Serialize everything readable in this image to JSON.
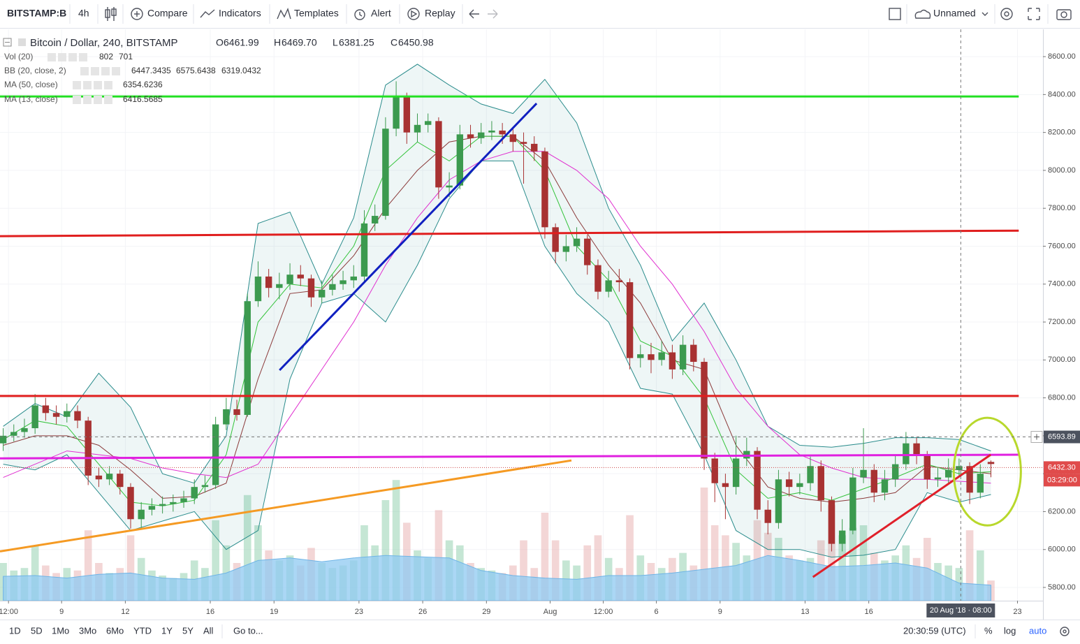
{
  "toolbar": {
    "symbol": "BITSTAMP:B",
    "interval": "4h",
    "compare": "Compare",
    "indicators": "Indicators",
    "templates": "Templates",
    "alert": "Alert",
    "replay": "Replay",
    "layout": "Unnamed"
  },
  "bottom": {
    "ranges": [
      "1D",
      "5D",
      "1Mo",
      "3Mo",
      "6Mo",
      "YTD",
      "1Y",
      "5Y",
      "All"
    ],
    "goto": "Go to...",
    "clock": "20:30:59 (UTC)",
    "percent": "%",
    "log": "log",
    "auto": "auto"
  },
  "chart_data": {
    "type": "candlestick",
    "legend": {
      "symbol": "Bitcoin / Dollar, 240, BITSTAMP",
      "letters": [
        "O",
        "H",
        "L",
        "C"
      ],
      "open": 6461.99,
      "high": {
        "value": 6469.7,
        "label": "6469.70"
      },
      "low": 6381.25,
      "close": 6450.98,
      "vol": {
        "label": "Vol (20)",
        "values": [
          802,
          701
        ]
      },
      "bb": {
        "label": "BB (20, close, 2)",
        "values": [
          6447.3435,
          6575.6438,
          6319.0432
        ]
      },
      "ma50": {
        "label": "MA (50, close)",
        "values": [
          6354.6236
        ]
      },
      "ma13": {
        "label": "MA (13, close)",
        "values": [
          6416.5685
        ]
      }
    },
    "xlim": [
      0.1,
      49.2
    ],
    "ylim": [
      5730,
      8744
    ],
    "volume_ylim": [
      0,
      5000
    ],
    "grid": true,
    "grid_color": "#f3f4f7",
    "up_color": "#3c9a4f",
    "down_color": "#a83232",
    "volume_color": "#7fc8a0",
    "volume_down_color": "#e5a3a3",
    "volume_ma_color": "#8fcaf2",
    "yticks": [
      {
        "value": 5800,
        "label": "5800.00"
      },
      {
        "value": 6000,
        "label": "6000.00"
      },
      {
        "value": 6200,
        "label": "6200.00"
      },
      {
        "value": 6400,
        "label": "6400.00"
      },
      {
        "value": 6600,
        "label": "6600.00"
      },
      {
        "value": 6800,
        "label": "6800.00"
      },
      {
        "value": 7000,
        "label": "7000.00"
      },
      {
        "value": 7200,
        "label": "7200.00"
      },
      {
        "value": 7400,
        "label": "7400.00"
      },
      {
        "value": 7600,
        "label": "7600.00"
      },
      {
        "value": 7800,
        "label": "7800.00"
      },
      {
        "value": 8000,
        "label": "8000.00"
      },
      {
        "value": 8200,
        "label": "8200.00"
      },
      {
        "value": 8400,
        "label": "8400.00"
      },
      {
        "value": 8600,
        "label": "8600.00"
      }
    ],
    "xticks": [
      {
        "value": 0.5,
        "label": "12:00"
      },
      {
        "value": 3,
        "label": "9"
      },
      {
        "value": 6,
        "label": "12"
      },
      {
        "value": 10,
        "label": "16"
      },
      {
        "value": 13,
        "label": "19"
      },
      {
        "value": 17,
        "label": "23"
      },
      {
        "value": 20,
        "label": "26"
      },
      {
        "value": 23,
        "label": "29"
      },
      {
        "value": 26,
        "label": "Aug"
      },
      {
        "value": 28.5,
        "label": "12:00"
      },
      {
        "value": 31,
        "label": "6"
      },
      {
        "value": 34,
        "label": "9"
      },
      {
        "value": 38,
        "label": "13"
      },
      {
        "value": 41,
        "label": "16"
      },
      {
        "value": 48,
        "label": "23"
      }
    ],
    "candles": {
      "x": [
        0.25,
        0.75,
        1.25,
        1.75,
        2.25,
        2.75,
        3.25,
        3.75,
        4.25,
        4.75,
        5.25,
        5.75,
        6.25,
        6.75,
        7.25,
        7.75,
        8.25,
        8.75,
        9.25,
        9.75,
        10.25,
        10.75,
        11.25,
        11.75,
        12.25,
        12.75,
        13.25,
        13.75,
        14.25,
        14.75,
        15.25,
        15.75,
        16.25,
        16.75,
        17.25,
        17.75,
        18.25,
        18.75,
        19.25,
        19.75,
        20.25,
        20.75,
        21.25,
        21.75,
        22.25,
        22.75,
        23.25,
        23.75,
        24.25,
        24.75,
        25.25,
        25.75,
        26.25,
        26.75,
        27.25,
        27.75,
        28.25,
        28.75,
        29.25,
        29.75,
        30.25,
        30.75,
        31.25,
        31.75,
        32.25,
        32.75,
        33.25,
        33.75,
        34.25,
        34.75,
        35.25,
        35.75,
        36.25,
        36.75,
        37.25,
        37.75,
        38.25,
        38.75,
        39.25,
        39.75,
        40.25,
        40.75,
        41.25,
        41.75,
        42.25,
        42.75,
        43.25,
        43.75,
        44.25,
        44.75,
        45.25,
        45.75,
        46.25,
        46.75
      ],
      "open": [
        6560,
        6600,
        6620,
        6640,
        6760,
        6720,
        6700,
        6730,
        6680,
        6390,
        6370,
        6400,
        6330,
        6160,
        6210,
        6230,
        6240,
        6250,
        6270,
        6330,
        6340,
        6660,
        6740,
        6710,
        7310,
        7440,
        7380,
        7400,
        7450,
        7430,
        7330,
        7370,
        7400,
        7420,
        7440,
        7720,
        7760,
        8220,
        8390,
        8200,
        8240,
        8260,
        7910,
        7920,
        8190,
        8170,
        8200,
        8210,
        8190,
        8150,
        8140,
        8100,
        7700,
        7570,
        7600,
        7640,
        7500,
        7360,
        7420,
        7410,
        7010,
        7030,
        7000,
        7040,
        6950,
        7080,
        6990,
        6480,
        6350,
        6330,
        6480,
        6520,
        6210,
        6140,
        6370,
        6330,
        6350,
        6440,
        6260,
        6030,
        6100,
        6380,
        6420,
        6300,
        6370,
        6450,
        6560,
        6500,
        6370,
        6380,
        6420,
        6440,
        6300,
        6461.99
      ],
      "high": [
        6640,
        6660,
        6690,
        6820,
        6800,
        6760,
        6770,
        6760,
        6700,
        6430,
        6440,
        6420,
        6350,
        6250,
        6270,
        6280,
        6290,
        6310,
        6370,
        6390,
        6700,
        6800,
        6790,
        7350,
        7520,
        7480,
        7460,
        7510,
        7500,
        7450,
        7420,
        7450,
        7470,
        7500,
        7790,
        7820,
        8280,
        8470,
        8410,
        8300,
        8300,
        8280,
        7990,
        8240,
        8240,
        8250,
        8260,
        8250,
        8220,
        8200,
        8180,
        8120,
        7720,
        7660,
        7700,
        7660,
        7530,
        7470,
        7480,
        7430,
        7080,
        7090,
        7100,
        7080,
        7130,
        7110,
        7010,
        6510,
        6400,
        6600,
        6590,
        6540,
        6260,
        6420,
        6410,
        6400,
        6490,
        6470,
        6280,
        6160,
        6430,
        6640,
        6450,
        6420,
        6500,
        6620,
        6590,
        6520,
        6430,
        6480,
        6480,
        6460,
        6450,
        6469.7
      ],
      "low": [
        6520,
        6570,
        6590,
        6610,
        6680,
        6660,
        6670,
        6640,
        6340,
        6330,
        6340,
        6290,
        6110,
        6110,
        6180,
        6190,
        6200,
        6220,
        6240,
        6300,
        6320,
        6630,
        6680,
        6700,
        7280,
        7330,
        7320,
        7370,
        7390,
        7280,
        7300,
        7340,
        7370,
        7380,
        7410,
        7680,
        7740,
        8180,
        8140,
        8150,
        8200,
        7850,
        7860,
        7900,
        8120,
        8140,
        8160,
        8140,
        8100,
        7930,
        8050,
        7640,
        7510,
        7520,
        7570,
        7450,
        7320,
        7330,
        7360,
        6950,
        6960,
        6930,
        6970,
        6900,
        6920,
        6940,
        6420,
        6250,
        6160,
        6290,
        6440,
        6160,
        6080,
        6110,
        6280,
        6290,
        6310,
        6200,
        5990,
        5990,
        6080,
        6350,
        6250,
        6260,
        6330,
        6420,
        6450,
        6320,
        6330,
        6350,
        6390,
        6240,
        6270,
        6381.25
      ],
      "close": [
        6600,
        6620,
        6640,
        6760,
        6720,
        6700,
        6730,
        6680,
        6390,
        6370,
        6400,
        6330,
        6160,
        6210,
        6230,
        6240,
        6250,
        6270,
        6330,
        6340,
        6660,
        6740,
        6710,
        7310,
        7440,
        7380,
        7400,
        7450,
        7430,
        7330,
        7370,
        7400,
        7420,
        7440,
        7720,
        7760,
        8220,
        8390,
        8200,
        8240,
        8260,
        7910,
        7920,
        8190,
        8170,
        8200,
        8210,
        8190,
        8150,
        8140,
        8100,
        7700,
        7570,
        7600,
        7640,
        7500,
        7360,
        7420,
        7410,
        7010,
        7030,
        7000,
        7040,
        6950,
        7080,
        6990,
        6480,
        6350,
        6330,
        6480,
        6520,
        6210,
        6140,
        6370,
        6330,
        6350,
        6440,
        6260,
        6030,
        6100,
        6380,
        6420,
        6300,
        6370,
        6450,
        6560,
        6500,
        6370,
        6380,
        6420,
        6440,
        6300,
        6400,
        6450.98
      ],
      "volume": [
        1500,
        1200,
        1300,
        2200,
        1400,
        1100,
        1300,
        1200,
        2800,
        1500,
        1100,
        1300,
        2600,
        1700,
        1200,
        1000,
        900,
        1100,
        1600,
        1300,
        3200,
        2200,
        1500,
        4200,
        3000,
        2000,
        1600,
        1800,
        1400,
        2100,
        1500,
        1300,
        1400,
        1600,
        3000,
        2200,
        4000,
        4800,
        3100,
        2000,
        1700,
        3600,
        2400,
        2200,
        1500,
        1300,
        1200,
        1100,
        1400,
        2400,
        1300,
        3500,
        2400,
        1600,
        1400,
        2200,
        2600,
        1700,
        1300,
        3400,
        1800,
        1500,
        1300,
        1700,
        1900,
        1400,
        4500,
        3000,
        2600,
        2300,
        1800,
        3200,
        2700,
        2500,
        1800,
        1600,
        1700,
        2400,
        3800,
        2600,
        2900,
        3000,
        1900,
        1600,
        1800,
        2200,
        1700,
        2500,
        1500,
        1400,
        1300,
        2800,
        2000,
        802
      ]
    },
    "indicators": {
      "x": [
        0.25,
        1.75,
        3.25,
        4.75,
        6.25,
        7.75,
        9.25,
        10.75,
        12.25,
        13.75,
        15.25,
        16.75,
        18.25,
        19.75,
        21.25,
        22.75,
        24.25,
        25.75,
        27.25,
        28.75,
        30.25,
        31.75,
        33.25,
        34.75,
        36.25,
        37.75,
        39.25,
        40.75,
        42.25,
        43.75,
        45.25,
        46.75
      ],
      "bb_upper": {
        "color": "#2a8c8c",
        "values": [
          6650,
          6770,
          6700,
          6930,
          6750,
          6400,
          6350,
          6600,
          7720,
          7780,
          7400,
          7750,
          8450,
          8560,
          8450,
          8350,
          8300,
          8480,
          8250,
          7800,
          7500,
          7100,
          7300,
          7000,
          6650,
          6550,
          6540,
          6560,
          6590,
          6590,
          6580,
          6520
        ]
      },
      "bb_lower": {
        "color": "#2a8c8c",
        "values": [
          6450,
          6420,
          6500,
          6300,
          6100,
          6150,
          6200,
          6000,
          6100,
          6900,
          7300,
          7350,
          7200,
          7500,
          7850,
          8050,
          8050,
          7600,
          7350,
          7200,
          6850,
          6820,
          6500,
          6100,
          6000,
          6000,
          5960,
          5970,
          6000,
          6300,
          6250,
          6290
        ]
      },
      "bb_basis": {
        "color": "#8b3a3a",
        "values": [
          6550,
          6600,
          6600,
          6550,
          6420,
          6270,
          6280,
          6350,
          6900,
          7350,
          7370,
          7550,
          7800,
          8000,
          8150,
          8180,
          8180,
          8050,
          7750,
          7500,
          7300,
          7000,
          6950,
          6550,
          6330,
          6270,
          6250,
          6270,
          6300,
          6440,
          6420,
          6400
        ]
      },
      "ma50": {
        "color": "#e030d0",
        "values": [
          6380,
          6450,
          6520,
          6500,
          6480,
          6430,
          6400,
          6380,
          6450,
          6700,
          6950,
          7200,
          7500,
          7750,
          7950,
          8050,
          8100,
          8100,
          8000,
          7850,
          7600,
          7400,
          7150,
          6850,
          6650,
          6500,
          6430,
          6380,
          6370,
          6370,
          6360,
          6350
        ]
      },
      "ma13": {
        "color": "#33c33a",
        "values": [
          6580,
          6680,
          6650,
          6450,
          6250,
          6230,
          6260,
          6500,
          7200,
          7400,
          7380,
          7600,
          8000,
          8150,
          8050,
          8180,
          8180,
          8000,
          7600,
          7420,
          7100,
          7020,
          6800,
          6420,
          6270,
          6300,
          6260,
          6320,
          6380,
          6450,
          6400,
          6410
        ]
      },
      "vol_ma": {
        "color": "#8fcaf2",
        "values": [
          970,
          1000,
          900,
          1050,
          1100,
          900,
          850,
          1100,
          1600,
          1700,
          1550,
          1700,
          1800,
          1750,
          1700,
          1200,
          1000,
          900,
          850,
          1000,
          1000,
          1100,
          1250,
          1400,
          1800,
          1600,
          1350,
          1400,
          1500,
          1300,
          700,
          620
        ]
      }
    },
    "drawings": [
      {
        "color": "#22e022",
        "x": [
          0.1,
          48.06
        ],
        "y": [
          8390,
          8390
        ]
      },
      {
        "color": "#e01e1e",
        "x": [
          0.1,
          48.06
        ],
        "y": [
          7653,
          7682
        ]
      },
      {
        "color": "#e01e1e",
        "x": [
          0.1,
          48.06
        ],
        "y": [
          6810,
          6810
        ]
      },
      {
        "color": "#e020e0",
        "x": [
          0.1,
          48.06
        ],
        "y": [
          6481,
          6500
        ]
      },
      {
        "color": "#f59a23",
        "x": [
          0.1,
          27.0
        ],
        "y": [
          5990,
          6470
        ]
      },
      {
        "color": "#1020c0",
        "x": [
          13.26,
          25.36
        ],
        "y": [
          6946,
          8353
        ]
      },
      {
        "color": "#e0202a",
        "x": [
          38.37,
          46.74
        ],
        "y": [
          5855,
          6500
        ]
      }
    ],
    "ellipse": {
      "color": "#b8d82c",
      "x": 46.58,
      "y": 6411,
      "rx": 1.58,
      "ry": 284
    },
    "crosshair": {
      "x": {
        "value": 45.33,
        "label": "20 Aug '18 · 08:00"
      },
      "y": 6593.89
    },
    "last_price": {
      "value": 6432.3,
      "label": "6432.30",
      "countdown": "03:29:00"
    }
  }
}
